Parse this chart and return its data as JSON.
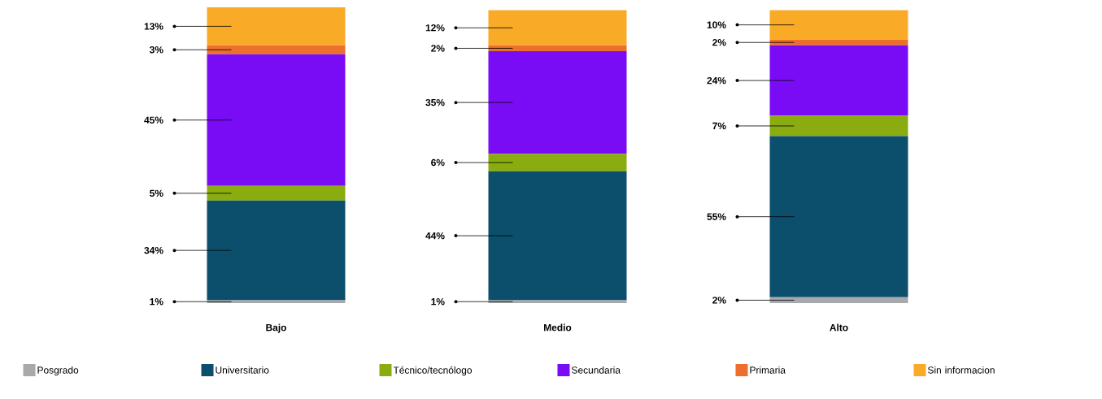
{
  "chart_data": {
    "type": "bar",
    "stacked": true,
    "categories": [
      "Bajo",
      "Medio",
      "Alto"
    ],
    "legend": "bottom",
    "series": [
      {
        "name": "Posgrado",
        "color": "#a7a9ac",
        "values": [
          1,
          1,
          2
        ],
        "value_labels": [
          "1%",
          "1%",
          "2%"
        ]
      },
      {
        "name": "Universitario",
        "color": "#0b4f6c",
        "values": [
          34,
          44,
          55
        ],
        "value_labels": [
          "34%",
          "44%",
          "55%"
        ]
      },
      {
        "name": "Técnico/tecnólogo",
        "color": "#8aac10",
        "values": [
          5,
          6,
          7
        ],
        "value_labels": [
          "5%",
          "6%",
          "7%"
        ]
      },
      {
        "name": "Secundaria",
        "color": "#7a0cf5",
        "values": [
          45,
          35,
          24
        ],
        "value_labels": [
          "45%",
          "35%",
          "24%"
        ]
      },
      {
        "name": "Primaria",
        "color": "#ec6f2d",
        "values": [
          3,
          2,
          2
        ],
        "value_labels": [
          "3%",
          "2%",
          "2%"
        ]
      },
      {
        "name": "Sin informacion",
        "color": "#f9ab27",
        "values": [
          13,
          12,
          10
        ],
        "value_labels": [
          "13%",
          "12%",
          "10%"
        ]
      }
    ]
  }
}
